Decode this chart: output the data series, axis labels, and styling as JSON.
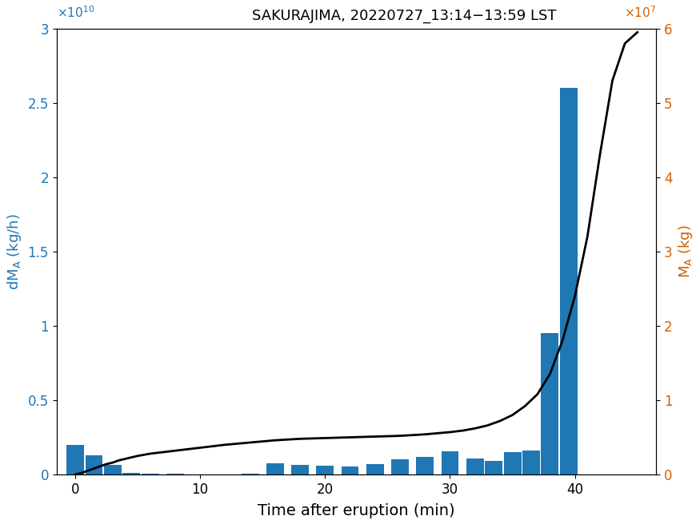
{
  "title": "SAKURAJIMA, 20220727_13:14−13:59 LST",
  "xlabel": "Time after eruption (min)",
  "ylabel_left": "dM_A (kg/h)",
  "ylabel_right": "M_A (kg)",
  "bar_color": "#1f77b4",
  "line_color": "black",
  "left_color": "#1f77b4",
  "right_color": "#d45f00",
  "ylim_left": [
    0,
    30000000000.0
  ],
  "ylim_right": [
    0,
    60000000.0
  ],
  "xlim": [
    -1.5,
    46.5
  ],
  "bar_width": 1.4,
  "bar_times": [
    0,
    1.5,
    3,
    4.5,
    6,
    8,
    10,
    12,
    14,
    16,
    18,
    20,
    22,
    24,
    26,
    28,
    30,
    32,
    33.5,
    35,
    36.5,
    38,
    39.5,
    41,
    42.5,
    44
  ],
  "bar_heights": [
    2000000000.0,
    1300000000.0,
    650000000.0,
    100000000.0,
    50000000.0,
    30000000.0,
    20000000.0,
    20000000.0,
    70000000.0,
    750000000.0,
    650000000.0,
    600000000.0,
    550000000.0,
    700000000.0,
    1000000000.0,
    1200000000.0,
    1550000000.0,
    1100000000.0,
    900000000.0,
    1500000000.0,
    1600000000.0,
    9500000000.0,
    26000000000.0,
    0,
    0,
    0
  ],
  "cum_times": [
    0,
    0.5,
    1,
    1.5,
    2,
    2.5,
    3,
    3.5,
    4,
    4.5,
    5,
    6,
    7,
    8,
    9,
    10,
    11,
    12,
    13,
    14,
    15,
    16,
    17,
    18,
    19,
    20,
    21,
    22,
    23,
    24,
    25,
    26,
    27,
    28,
    29,
    30,
    31,
    32,
    33,
    34,
    35,
    36,
    37,
    38,
    39,
    40,
    41,
    42,
    43,
    44,
    45
  ],
  "cum_values": [
    0,
    200000.0,
    500000.0,
    800000.0,
    1100000.0,
    1400000.0,
    1600000.0,
    1900000.0,
    2100000.0,
    2300000.0,
    2500000.0,
    2800000.0,
    3000000.0,
    3200000.0,
    3400000.0,
    3600000.0,
    3800000.0,
    4000000.0,
    4150000.0,
    4300000.0,
    4450000.0,
    4600000.0,
    4700000.0,
    4800000.0,
    4850000.0,
    4900000.0,
    4950000.0,
    5000000.0,
    5050000.0,
    5100000.0,
    5150000.0,
    5200000.0,
    5300000.0,
    5400000.0,
    5550000.0,
    5700000.0,
    5900000.0,
    6200000.0,
    6600000.0,
    7200000.0,
    8000000.0,
    9200000.0,
    10800000.0,
    13500000.0,
    18000000.0,
    24000000.0,
    32000000.0,
    43000000.0,
    53000000.0,
    58000000.0,
    59500000.0
  ],
  "xticks": [
    0,
    10,
    20,
    30,
    40
  ],
  "yticks_left": [
    0,
    0.5,
    1.0,
    1.5,
    2.0,
    2.5,
    3.0
  ],
  "yticks_right": [
    0,
    1,
    2,
    3,
    4,
    5,
    6
  ]
}
